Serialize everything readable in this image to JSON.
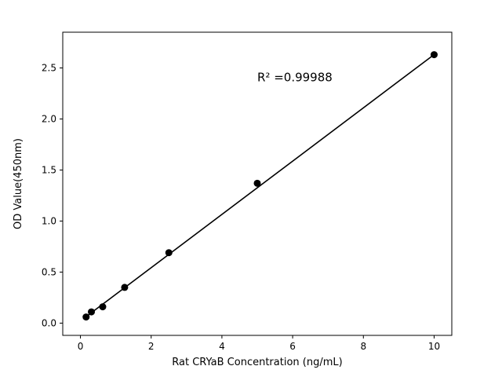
{
  "figure": {
    "background": "#ffffff",
    "foreground": "#000000"
  },
  "chart_data": {
    "type": "scatter",
    "title": "",
    "xlabel": "Rat CRYaB Concentration (ng/mL)",
    "ylabel": "OD Value(450nm)",
    "annotation": {
      "text": "R² =0.99988",
      "x": 5.0,
      "y": 2.37,
      "anchor": "start",
      "font_size": 15
    },
    "x": [
      0.16,
      0.31,
      0.63,
      1.25,
      2.5,
      5,
      10
    ],
    "y": [
      0.06,
      0.11,
      0.16,
      0.35,
      0.69,
      1.37,
      2.63
    ],
    "fit_line": {
      "type": "linear",
      "slope": 0.261,
      "intercept": 0.021,
      "color": "#000000",
      "width": 1.6
    },
    "marker": {
      "shape": "circle",
      "color": "#000000",
      "radius": 4.5
    },
    "xlim": [
      -0.5,
      10.5
    ],
    "ylim": [
      -0.12,
      2.85
    ],
    "xticks": [
      0,
      2,
      4,
      6,
      8,
      10
    ],
    "yticks": [
      0.0,
      0.5,
      1.0,
      1.5,
      2.0,
      2.5
    ],
    "xtick_labels": [
      "0",
      "2",
      "4",
      "6",
      "8",
      "10"
    ],
    "ytick_labels": [
      "0.0",
      "0.5",
      "1.0",
      "1.5",
      "2.0",
      "2.5"
    ],
    "grid": false,
    "legend": null,
    "axes_box": true
  }
}
